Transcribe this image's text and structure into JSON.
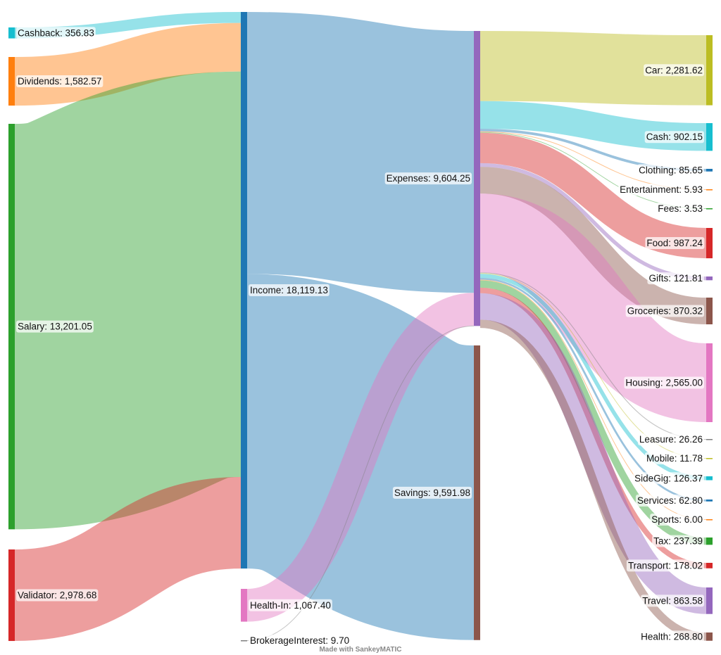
{
  "chart_data": {
    "type": "sankey",
    "credit": "Made with SankeyMATIC",
    "nodes": [
      {
        "id": "cashback",
        "label": "Cashback: 356.83",
        "value": 356.83,
        "color": "#17becf"
      },
      {
        "id": "dividends",
        "label": "Dividends: 1,582.57",
        "value": 1582.57,
        "color": "#ff7f0e"
      },
      {
        "id": "salary",
        "label": "Salary: 13,201.05",
        "value": 13201.05,
        "color": "#2ca02c"
      },
      {
        "id": "validator",
        "label": "Validator: 2,978.68",
        "value": 2978.68,
        "color": "#d62728"
      },
      {
        "id": "income",
        "label": "Income: 18,119.13",
        "value": 18119.13,
        "color": "#1f77b4"
      },
      {
        "id": "healthin",
        "label": "Health-In: 1,067.40",
        "value": 1067.4,
        "color": "#e377c2"
      },
      {
        "id": "brokerage",
        "label": "BrokerageInterest: 9.70",
        "value": 9.7,
        "color": "#7f7f7f"
      },
      {
        "id": "expenses",
        "label": "Expenses: 9,604.25",
        "value": 9604.25,
        "color": "#9467bd"
      },
      {
        "id": "savings",
        "label": "Savings: 9,591.98",
        "value": 9591.98,
        "color": "#8c564b"
      },
      {
        "id": "car",
        "label": "Car: 2,281.62",
        "value": 2281.62,
        "color": "#bcbd22"
      },
      {
        "id": "cash",
        "label": "Cash: 902.15",
        "value": 902.15,
        "color": "#17becf"
      },
      {
        "id": "clothing",
        "label": "Clothing: 85.65",
        "value": 85.65,
        "color": "#1f77b4"
      },
      {
        "id": "entertain",
        "label": "Entertainment: 5.93",
        "value": 5.93,
        "color": "#ff7f0e"
      },
      {
        "id": "fees",
        "label": "Fees: 3.53",
        "value": 3.53,
        "color": "#2ca02c"
      },
      {
        "id": "food",
        "label": "Food: 987.24",
        "value": 987.24,
        "color": "#d62728"
      },
      {
        "id": "gifts",
        "label": "Gifts: 121.81",
        "value": 121.81,
        "color": "#9467bd"
      },
      {
        "id": "groceries",
        "label": "Groceries: 870.32",
        "value": 870.32,
        "color": "#8c564b"
      },
      {
        "id": "housing",
        "label": "Housing: 2,565.00",
        "value": 2565.0,
        "color": "#e377c2"
      },
      {
        "id": "leasure",
        "label": "Leasure: 26.26",
        "value": 26.26,
        "color": "#7f7f7f"
      },
      {
        "id": "mobile",
        "label": "Mobile: 11.78",
        "value": 11.78,
        "color": "#bcbd22"
      },
      {
        "id": "sidegig",
        "label": "SideGig: 126.37",
        "value": 126.37,
        "color": "#17becf"
      },
      {
        "id": "services",
        "label": "Services: 62.80",
        "value": 62.8,
        "color": "#1f77b4"
      },
      {
        "id": "sports",
        "label": "Sports: 6.00",
        "value": 6.0,
        "color": "#ff7f0e"
      },
      {
        "id": "tax",
        "label": "Tax: 237.39",
        "value": 237.39,
        "color": "#2ca02c"
      },
      {
        "id": "transport",
        "label": "Transport: 178.02",
        "value": 178.02,
        "color": "#d62728"
      },
      {
        "id": "travel",
        "label": "Travel: 863.58",
        "value": 863.58,
        "color": "#9467bd"
      },
      {
        "id": "health",
        "label": "Health: 268.80",
        "value": 268.8,
        "color": "#8c564b"
      }
    ],
    "flows": [
      {
        "from": "cashback",
        "to": "income",
        "value": 356.83
      },
      {
        "from": "dividends",
        "to": "income",
        "value": 1582.57
      },
      {
        "from": "salary",
        "to": "income",
        "value": 13201.05
      },
      {
        "from": "validator",
        "to": "income",
        "value": 2978.68
      },
      {
        "from": "income",
        "to": "expenses",
        "value": 8527.15
      },
      {
        "from": "income",
        "to": "savings",
        "value": 9591.98
      },
      {
        "from": "healthin",
        "to": "expenses",
        "value": 1067.4
      },
      {
        "from": "brokerage",
        "to": "expenses",
        "value": 9.7
      },
      {
        "from": "expenses",
        "to": "car",
        "value": 2281.62
      },
      {
        "from": "expenses",
        "to": "cash",
        "value": 902.15
      },
      {
        "from": "expenses",
        "to": "clothing",
        "value": 85.65
      },
      {
        "from": "expenses",
        "to": "entertain",
        "value": 5.93
      },
      {
        "from": "expenses",
        "to": "fees",
        "value": 3.53
      },
      {
        "from": "expenses",
        "to": "food",
        "value": 987.24
      },
      {
        "from": "expenses",
        "to": "gifts",
        "value": 121.81
      },
      {
        "from": "expenses",
        "to": "groceries",
        "value": 870.32
      },
      {
        "from": "expenses",
        "to": "housing",
        "value": 2565.0
      },
      {
        "from": "expenses",
        "to": "leasure",
        "value": 26.26
      },
      {
        "from": "expenses",
        "to": "mobile",
        "value": 11.78
      },
      {
        "from": "expenses",
        "to": "sidegig",
        "value": 126.37
      },
      {
        "from": "expenses",
        "to": "services",
        "value": 62.8
      },
      {
        "from": "expenses",
        "to": "sports",
        "value": 6.0
      },
      {
        "from": "expenses",
        "to": "tax",
        "value": 237.39
      },
      {
        "from": "expenses",
        "to": "transport",
        "value": 178.02
      },
      {
        "from": "expenses",
        "to": "travel",
        "value": 863.58
      },
      {
        "from": "expenses",
        "to": "health",
        "value": 268.8
      }
    ]
  }
}
